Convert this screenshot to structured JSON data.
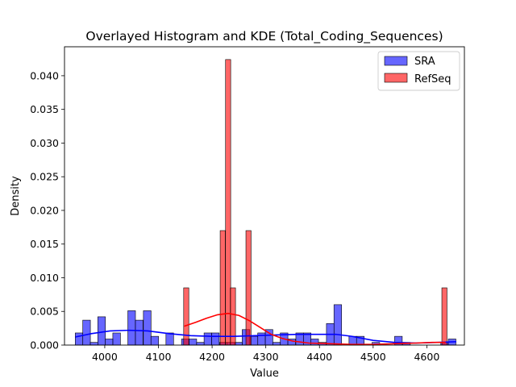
{
  "chart_data": {
    "type": "bar",
    "title": "Overlayed Histogram and KDE (Total_Coding_Sequences)",
    "xlabel": "Value",
    "ylabel": "Density",
    "xlim": [
      3925,
      4670
    ],
    "ylim": [
      0,
      0.0443
    ],
    "xticks": [
      4000,
      4100,
      4200,
      4300,
      4400,
      4500,
      4600
    ],
    "yticks": [
      0.0,
      0.005,
      0.01,
      0.015,
      0.02,
      0.025,
      0.03,
      0.035,
      0.04
    ],
    "ytick_labels": [
      "0.000",
      "0.005",
      "0.010",
      "0.015",
      "0.020",
      "0.025",
      "0.030",
      "0.035",
      "0.040"
    ],
    "legend_position": "top-right",
    "series": [
      {
        "name": "SRA",
        "color": "#0000ff",
        "kde_color": "#0000ff",
        "bin_width": 14.2,
        "bins": [
          [
            3945,
            0.0018
          ],
          [
            3959,
            0.0037
          ],
          [
            3973,
            0.0004
          ],
          [
            3987,
            0.0042
          ],
          [
            4001,
            0.0009
          ],
          [
            4015,
            0.0018
          ],
          [
            4029,
            0.0
          ],
          [
            4043,
            0.0051
          ],
          [
            4057,
            0.0037
          ],
          [
            4072,
            0.0051
          ],
          [
            4086,
            0.0013
          ],
          [
            4100,
            0.0
          ],
          [
            4114,
            0.0018
          ],
          [
            4128,
            0.0
          ],
          [
            4143,
            0.0009
          ],
          [
            4157,
            0.0009
          ],
          [
            4171,
            0.0004
          ],
          [
            4185,
            0.0018
          ],
          [
            4199,
            0.0018
          ],
          [
            4214,
            0.0004
          ],
          [
            4228,
            0.0004
          ],
          [
            4242,
            0.0004
          ],
          [
            4256,
            0.0023
          ],
          [
            4271,
            0.0013
          ],
          [
            4285,
            0.0018
          ],
          [
            4299,
            0.0023
          ],
          [
            4313,
            0.0004
          ],
          [
            4327,
            0.0018
          ],
          [
            4341,
            0.0009
          ],
          [
            4356,
            0.0018
          ],
          [
            4370,
            0.0018
          ],
          [
            4384,
            0.0009
          ],
          [
            4398,
            0.0004
          ],
          [
            4413,
            0.0032
          ],
          [
            4427,
            0.006
          ],
          [
            4441,
            0.0
          ],
          [
            4455,
            0.0013
          ],
          [
            4469,
            0.0013
          ],
          [
            4484,
            0.0
          ],
          [
            4498,
            0.0004
          ],
          [
            4512,
            0.0
          ],
          [
            4526,
            0.0
          ],
          [
            4540,
            0.0013
          ],
          [
            4555,
            0.0004
          ],
          [
            4569,
            0.0
          ],
          [
            4583,
            0.0
          ],
          [
            4597,
            0.0
          ],
          [
            4612,
            0.0
          ],
          [
            4626,
            0.0004
          ],
          [
            4640,
            0.0009
          ]
        ],
        "kde": [
          [
            3945,
            0.0012
          ],
          [
            3975,
            0.0017
          ],
          [
            4010,
            0.0021
          ],
          [
            4045,
            0.0022
          ],
          [
            4080,
            0.0021
          ],
          [
            4120,
            0.0017
          ],
          [
            4160,
            0.0014
          ],
          [
            4200,
            0.0013
          ],
          [
            4240,
            0.0013
          ],
          [
            4280,
            0.0014
          ],
          [
            4320,
            0.0015
          ],
          [
            4360,
            0.0016
          ],
          [
            4400,
            0.0016
          ],
          [
            4430,
            0.0016
          ],
          [
            4460,
            0.0013
          ],
          [
            4500,
            0.0007
          ],
          [
            4540,
            0.0004
          ],
          [
            4580,
            0.0003
          ],
          [
            4620,
            0.0004
          ],
          [
            4655,
            0.0005
          ]
        ]
      },
      {
        "name": "RefSeq",
        "color": "#ff0000",
        "kde_color": "#ff0000",
        "bin_width": 9.6,
        "bins": [
          [
            4147,
            0.0085
          ],
          [
            4215,
            0.017
          ],
          [
            4225,
            0.0424
          ],
          [
            4234,
            0.0085
          ],
          [
            4263,
            0.017
          ],
          [
            4628,
            0.0085
          ]
        ],
        "kde": [
          [
            4148,
            0.0028
          ],
          [
            4170,
            0.0034
          ],
          [
            4190,
            0.004
          ],
          [
            4210,
            0.0045
          ],
          [
            4230,
            0.0047
          ],
          [
            4250,
            0.0044
          ],
          [
            4270,
            0.0036
          ],
          [
            4290,
            0.0026
          ],
          [
            4310,
            0.0016
          ],
          [
            4330,
            0.001
          ],
          [
            4350,
            0.0006
          ],
          [
            4380,
            0.0003
          ],
          [
            4420,
            0.0002
          ],
          [
            4460,
            0.0001
          ],
          [
            4500,
            0.0001
          ],
          [
            4540,
            0.0002
          ],
          [
            4580,
            0.0003
          ],
          [
            4610,
            0.0004
          ],
          [
            4635,
            0.0004
          ]
        ]
      }
    ]
  }
}
